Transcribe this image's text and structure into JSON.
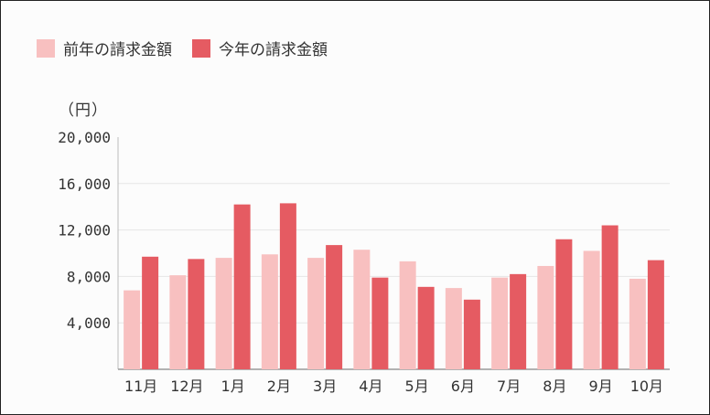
{
  "chart_data": {
    "type": "bar",
    "unit_label": "（円）",
    "categories": [
      "11月",
      "12月",
      "1月",
      "2月",
      "3月",
      "4月",
      "5月",
      "6月",
      "7月",
      "8月",
      "9月",
      "10月"
    ],
    "series": [
      {
        "name": "前年の請求金額",
        "color": "#f8c0c0",
        "values": [
          6800,
          8100,
          9600,
          9900,
          9600,
          10300,
          9300,
          7000,
          7900,
          8900,
          10200,
          7800
        ]
      },
      {
        "name": "今年の請求金額",
        "color": "#e55b62",
        "values": [
          9700,
          9500,
          14200,
          14300,
          10700,
          7900,
          7100,
          6000,
          8200,
          11200,
          12400,
          9400
        ]
      }
    ],
    "y_ticks": [
      "4,000",
      "8,000",
      "12,000",
      "16,000",
      "20,000"
    ],
    "y_tick_values": [
      4000,
      8000,
      12000,
      16000,
      20000
    ],
    "ylim": [
      0,
      20000
    ],
    "grid": true,
    "legend_position": "top-left"
  }
}
